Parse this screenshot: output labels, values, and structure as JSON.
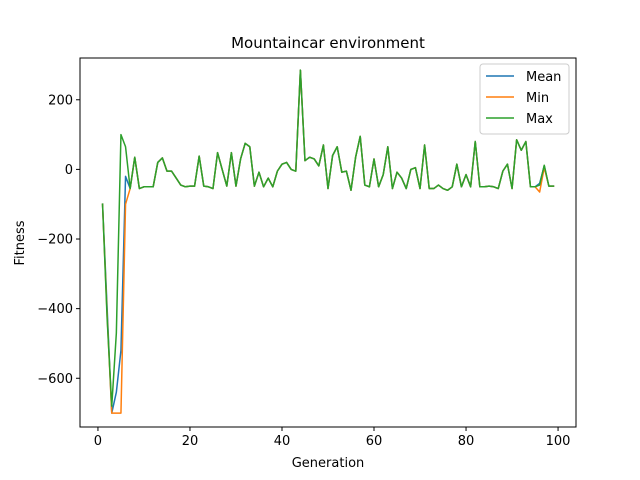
{
  "chart_data": {
    "type": "line",
    "title": "Mountaincar environment",
    "xlabel": "Generation",
    "ylabel": "Fitness",
    "xlim": [
      -3.9,
      103.9
    ],
    "ylim": [
      -740,
      320
    ],
    "xticks": [
      0,
      20,
      40,
      60,
      80,
      100
    ],
    "yticks": [
      -600,
      -400,
      -200,
      0,
      200
    ],
    "legend_position": "upper right",
    "grid": false,
    "x": [
      1,
      2,
      3,
      4,
      5,
      6,
      7,
      8,
      9,
      10,
      11,
      12,
      13,
      14,
      15,
      16,
      17,
      18,
      19,
      20,
      21,
      22,
      23,
      24,
      25,
      26,
      27,
      28,
      29,
      30,
      31,
      32,
      33,
      34,
      35,
      36,
      37,
      38,
      39,
      40,
      41,
      42,
      43,
      44,
      45,
      46,
      47,
      48,
      49,
      50,
      51,
      52,
      53,
      54,
      55,
      56,
      57,
      58,
      59,
      60,
      61,
      62,
      63,
      64,
      65,
      66,
      67,
      68,
      69,
      70,
      71,
      72,
      73,
      74,
      75,
      76,
      77,
      78,
      79,
      80,
      81,
      82,
      83,
      84,
      85,
      86,
      87,
      88,
      89,
      90,
      91,
      92,
      93,
      94,
      95,
      96,
      97,
      98,
      99
    ],
    "series": [
      {
        "name": "Mean",
        "color": "#1f77b4",
        "values": [
          -100,
          -400,
          -700,
          -640,
          -520,
          -20,
          -55,
          35,
          -55,
          -50,
          -50,
          -50,
          20,
          33,
          -5,
          -5,
          -25,
          -45,
          -50,
          -48,
          -48,
          38,
          -48,
          -50,
          -55,
          48,
          0,
          -48,
          48,
          -48,
          30,
          75,
          65,
          -48,
          -8,
          -50,
          -25,
          -50,
          -5,
          15,
          20,
          0,
          -5,
          285,
          25,
          35,
          30,
          10,
          70,
          -55,
          40,
          65,
          -8,
          -5,
          -60,
          35,
          95,
          -45,
          -50,
          30,
          -50,
          -15,
          65,
          -55,
          -8,
          -25,
          -55,
          0,
          5,
          -55,
          70,
          -55,
          -55,
          -45,
          -55,
          -60,
          -50,
          15,
          -50,
          -15,
          -50,
          80,
          -50,
          -50,
          -48,
          -50,
          -55,
          -5,
          15,
          -55,
          85,
          55,
          80,
          -50,
          -50,
          -40,
          10,
          -48,
          -48
        ]
      },
      {
        "name": "Min",
        "color": "#ff7f0e",
        "values": [
          -100,
          -420,
          -700,
          -700,
          -700,
          -100,
          -55,
          35,
          -55,
          -50,
          -50,
          -50,
          20,
          33,
          -5,
          -5,
          -25,
          -45,
          -50,
          -48,
          -48,
          38,
          -48,
          -50,
          -55,
          48,
          0,
          -48,
          48,
          -48,
          30,
          75,
          65,
          -48,
          -8,
          -50,
          -25,
          -50,
          -5,
          15,
          20,
          0,
          -5,
          285,
          25,
          35,
          30,
          10,
          70,
          -55,
          40,
          65,
          -8,
          -5,
          -60,
          35,
          95,
          -45,
          -50,
          30,
          -50,
          -15,
          65,
          -55,
          -8,
          -25,
          -55,
          0,
          5,
          -55,
          70,
          -55,
          -55,
          -45,
          -55,
          -60,
          -50,
          15,
          -50,
          -15,
          -50,
          80,
          -50,
          -50,
          -48,
          -50,
          -55,
          -5,
          15,
          -55,
          85,
          55,
          80,
          -50,
          -50,
          -65,
          5,
          -48,
          -48
        ]
      },
      {
        "name": "Max",
        "color": "#2ca02c",
        "values": [
          -100,
          -430,
          -680,
          -470,
          100,
          65,
          -55,
          35,
          -55,
          -50,
          -50,
          -50,
          20,
          33,
          -5,
          -5,
          -25,
          -45,
          -50,
          -48,
          -48,
          38,
          -48,
          -50,
          -55,
          48,
          0,
          -48,
          48,
          -48,
          30,
          75,
          65,
          -48,
          -8,
          -50,
          -25,
          -50,
          -5,
          15,
          20,
          0,
          -5,
          285,
          25,
          35,
          30,
          10,
          70,
          -55,
          40,
          65,
          -8,
          -5,
          -60,
          35,
          95,
          -45,
          -50,
          30,
          -50,
          -15,
          65,
          -55,
          -8,
          -25,
          -55,
          0,
          5,
          -55,
          70,
          -55,
          -55,
          -45,
          -55,
          -60,
          -50,
          15,
          -50,
          -15,
          -50,
          80,
          -50,
          -50,
          -48,
          -50,
          -55,
          -5,
          15,
          -55,
          85,
          55,
          80,
          -50,
          -50,
          -45,
          12,
          -48,
          -48
        ]
      }
    ]
  }
}
